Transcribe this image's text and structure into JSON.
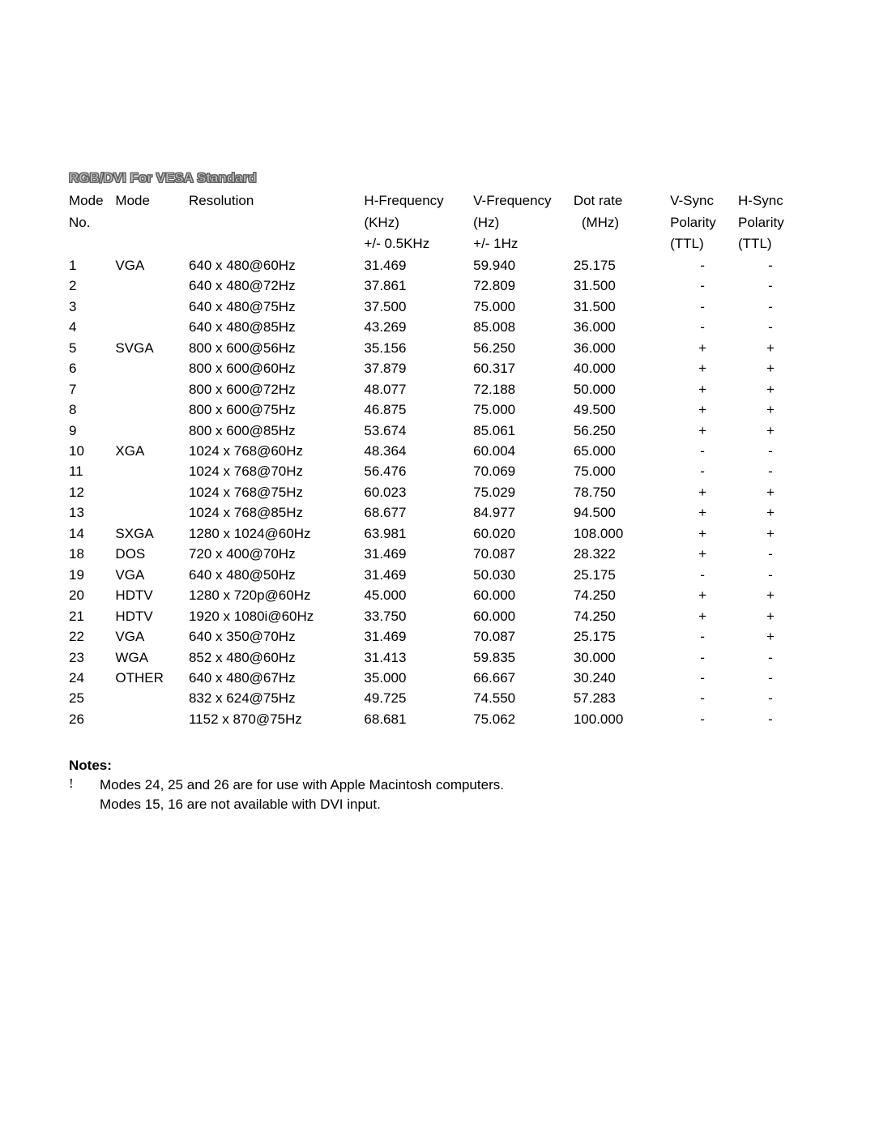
{
  "title": "RGB/DVI For VESA Standard",
  "colors": {
    "background": "#ffffff",
    "text": "#000000",
    "title_outline": "#505050",
    "title_fill": "#c0c0c0"
  },
  "table": {
    "headers": {
      "mode_no": {
        "l1": "Mode",
        "l2": "No.",
        "l3": ""
      },
      "mode": {
        "l1": "Mode",
        "l2": "",
        "l3": ""
      },
      "resolution": {
        "l1": "Resolution",
        "l2": "",
        "l3": ""
      },
      "hfreq": {
        "l1": "H-Frequency",
        "l2": "(KHz)",
        "l3": "+/- 0.5KHz"
      },
      "vfreq": {
        "l1": "V-Frequency",
        "l2": "(Hz)",
        "l3": "+/- 1Hz"
      },
      "dotrate": {
        "l1": "Dot rate",
        "l2": "(MHz)",
        "l3": ""
      },
      "vsync": {
        "l1": "V-Sync",
        "l2": "Polarity",
        "l3": "(TTL)"
      },
      "hsync": {
        "l1": "H-Sync",
        "l2": "Polarity",
        "l3": "(TTL)"
      }
    },
    "rows": [
      {
        "no": "1",
        "mode": "VGA",
        "res": "640 x 480@60Hz",
        "hfreq": "31.469",
        "vfreq": "59.940",
        "dot": "25.175",
        "vsync": "-",
        "hsync": "-"
      },
      {
        "no": "2",
        "mode": "",
        "res": "640 x 480@72Hz",
        "hfreq": "37.861",
        "vfreq": "72.809",
        "dot": "31.500",
        "vsync": "-",
        "hsync": "-"
      },
      {
        "no": "3",
        "mode": "",
        "res": "640 x 480@75Hz",
        "hfreq": "37.500",
        "vfreq": "75.000",
        "dot": "31.500",
        "vsync": "-",
        "hsync": "-"
      },
      {
        "no": "4",
        "mode": "",
        "res": "640 x 480@85Hz",
        "hfreq": "43.269",
        "vfreq": "85.008",
        "dot": "36.000",
        "vsync": "-",
        "hsync": "-"
      },
      {
        "no": "5",
        "mode": "SVGA",
        "res": "800 x 600@56Hz",
        "hfreq": "35.156",
        "vfreq": "56.250",
        "dot": "36.000",
        "vsync": "+",
        "hsync": "+"
      },
      {
        "no": "6",
        "mode": "",
        "res": "800 x 600@60Hz",
        "hfreq": "37.879",
        "vfreq": "60.317",
        "dot": "40.000",
        "vsync": "+",
        "hsync": "+"
      },
      {
        "no": "7",
        "mode": "",
        "res": "800 x 600@72Hz",
        "hfreq": "48.077",
        "vfreq": "72.188",
        "dot": "50.000",
        "vsync": "+",
        "hsync": "+"
      },
      {
        "no": "8",
        "mode": "",
        "res": "800 x 600@75Hz",
        "hfreq": "46.875",
        "vfreq": "75.000",
        "dot": "49.500",
        "vsync": "+",
        "hsync": "+"
      },
      {
        "no": "9",
        "mode": "",
        "res": "800 x 600@85Hz",
        "hfreq": "53.674",
        "vfreq": "85.061",
        "dot": "56.250",
        "vsync": "+",
        "hsync": "+"
      },
      {
        "no": "10",
        "mode": "XGA",
        "res": "1024 x 768@60Hz",
        "hfreq": "48.364",
        "vfreq": "60.004",
        "dot": "65.000",
        "vsync": "-",
        "hsync": "-"
      },
      {
        "no": "11",
        "mode": "",
        "res": "1024 x 768@70Hz",
        "hfreq": "56.476",
        "vfreq": "70.069",
        "dot": "75.000",
        "vsync": "-",
        "hsync": "-"
      },
      {
        "no": "12",
        "mode": "",
        "res": "1024 x 768@75Hz",
        "hfreq": "60.023",
        "vfreq": "75.029",
        "dot": "78.750",
        "vsync": "+",
        "hsync": "+"
      },
      {
        "no": "13",
        "mode": "",
        "res": "1024 x 768@85Hz",
        "hfreq": "68.677",
        "vfreq": "84.977",
        "dot": "94.500",
        "vsync": "+",
        "hsync": "+"
      },
      {
        "no": "14",
        "mode": "SXGA",
        "res": "1280 x 1024@60Hz",
        "hfreq": "63.981",
        "vfreq": "60.020",
        "dot": "108.000",
        "vsync": "+",
        "hsync": "+"
      },
      {
        "no": "18",
        "mode": "DOS",
        "res": "720 x 400@70Hz",
        "hfreq": "31.469",
        "vfreq": "70.087",
        "dot": "28.322",
        "vsync": "+",
        "hsync": "-"
      },
      {
        "no": "19",
        "mode": "VGA",
        "res": "640 x 480@50Hz",
        "hfreq": "31.469",
        "vfreq": "50.030",
        "dot": "25.175",
        "vsync": "-",
        "hsync": "-"
      },
      {
        "no": "20",
        "mode": "HDTV",
        "res": "1280 x 720p@60Hz",
        "hfreq": "45.000",
        "vfreq": "60.000",
        "dot": "74.250",
        "vsync": "+",
        "hsync": "+"
      },
      {
        "no": "21",
        "mode": "HDTV",
        "res": "1920 x 1080i@60Hz",
        "hfreq": "33.750",
        "vfreq": "60.000",
        "dot": "74.250",
        "vsync": "+",
        "hsync": "+"
      },
      {
        "no": "22",
        "mode": "VGA",
        "res": "640 x 350@70Hz",
        "hfreq": "31.469",
        "vfreq": "70.087",
        "dot": "25.175",
        "vsync": "-",
        "hsync": "+"
      },
      {
        "no": "23",
        "mode": "WGA",
        "res": "852 x 480@60Hz",
        "hfreq": "31.413",
        "vfreq": "59.835",
        "dot": "30.000",
        "vsync": "-",
        "hsync": "-"
      },
      {
        "no": "24",
        "mode": "OTHER",
        "res": "640 x 480@67Hz",
        "hfreq": "35.000",
        "vfreq": "66.667",
        "dot": "30.240",
        "vsync": "-",
        "hsync": "-"
      },
      {
        "no": "25",
        "mode": "",
        "res": "832 x 624@75Hz",
        "hfreq": "49.725",
        "vfreq": "74.550",
        "dot": "57.283",
        "vsync": "-",
        "hsync": "-"
      },
      {
        "no": "26",
        "mode": "",
        "res": "1152 x 870@75Hz",
        "hfreq": "68.681",
        "vfreq": "75.062",
        "dot": "100.000",
        "vsync": "-",
        "hsync": "-"
      }
    ]
  },
  "notes": {
    "heading": "Notes:",
    "bullet": "!",
    "line1": "Modes 24, 25 and 26 are for use with Apple Macintosh computers.",
    "line2": "Modes 15, 16 are not available with DVI input."
  }
}
